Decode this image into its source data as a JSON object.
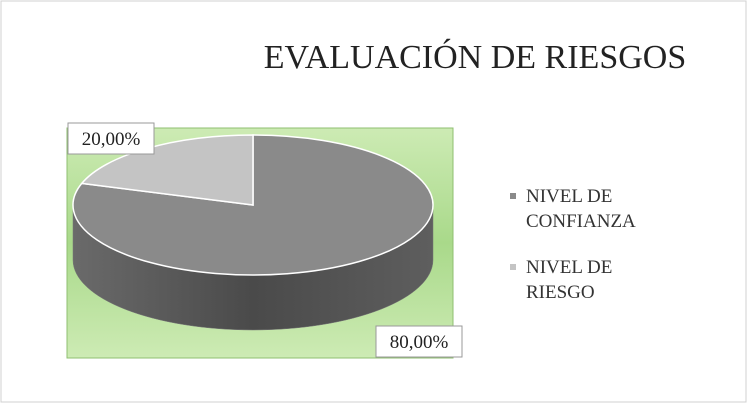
{
  "chart_data": {
    "type": "pie",
    "title": "EVALUACIÓN DE RIESGOS",
    "labels": [
      "NIVEL DE CONFIANZA",
      "NIVEL DE RIESGO"
    ],
    "values": [
      80,
      20
    ],
    "value_labels": [
      "80,00%",
      "20,00%"
    ],
    "colors": [
      "#8a8a8a",
      "#c4c4c4"
    ],
    "legend": "right"
  }
}
